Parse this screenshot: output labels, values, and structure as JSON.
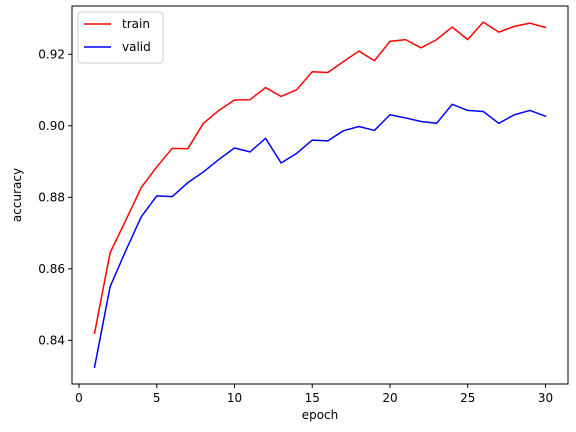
{
  "chart_data": {
    "type": "line",
    "xlabel": "epoch",
    "ylabel": "accuracy",
    "xlim": [
      -0.45,
      31.45
    ],
    "ylim": [
      0.8278,
      0.9335
    ],
    "xticks": [
      0,
      5,
      10,
      15,
      20,
      25,
      30
    ],
    "yticks": [
      0.84,
      0.86,
      0.88,
      0.9,
      0.92
    ],
    "xtick_labels": [
      "0",
      "5",
      "10",
      "15",
      "20",
      "25",
      "30"
    ],
    "ytick_labels": [
      "0.84",
      "0.86",
      "0.88",
      "0.90",
      "0.92"
    ],
    "grid": false,
    "legend_position": "top-left",
    "x": [
      1,
      2,
      3,
      4,
      5,
      6,
      7,
      8,
      9,
      10,
      11,
      12,
      13,
      14,
      15,
      16,
      17,
      18,
      19,
      20,
      21,
      22,
      23,
      24,
      25,
      26,
      27,
      28,
      29,
      30
    ],
    "series": [
      {
        "name": "train",
        "color": "#ff0000",
        "values": [
          0.842,
          0.8645,
          0.8735,
          0.8827,
          0.8885,
          0.8937,
          0.8936,
          0.9007,
          0.9043,
          0.9072,
          0.9073,
          0.9107,
          0.9082,
          0.9101,
          0.9151,
          0.9149,
          0.9179,
          0.9209,
          0.9182,
          0.9236,
          0.9241,
          0.9218,
          0.9241,
          0.9276,
          0.9241,
          0.929,
          0.9262,
          0.9278,
          0.9287,
          0.9275
        ]
      },
      {
        "name": "valid",
        "color": "#0000ff",
        "values": [
          0.8325,
          0.855,
          0.865,
          0.8745,
          0.8804,
          0.8802,
          0.8841,
          0.8871,
          0.8906,
          0.8938,
          0.8927,
          0.8965,
          0.8896,
          0.8923,
          0.896,
          0.8958,
          0.8986,
          0.8998,
          0.8987,
          0.9031,
          0.9022,
          0.9012,
          0.9007,
          0.906,
          0.9043,
          0.904,
          0.9007,
          0.9031,
          0.9043,
          0.9027
        ]
      }
    ]
  }
}
